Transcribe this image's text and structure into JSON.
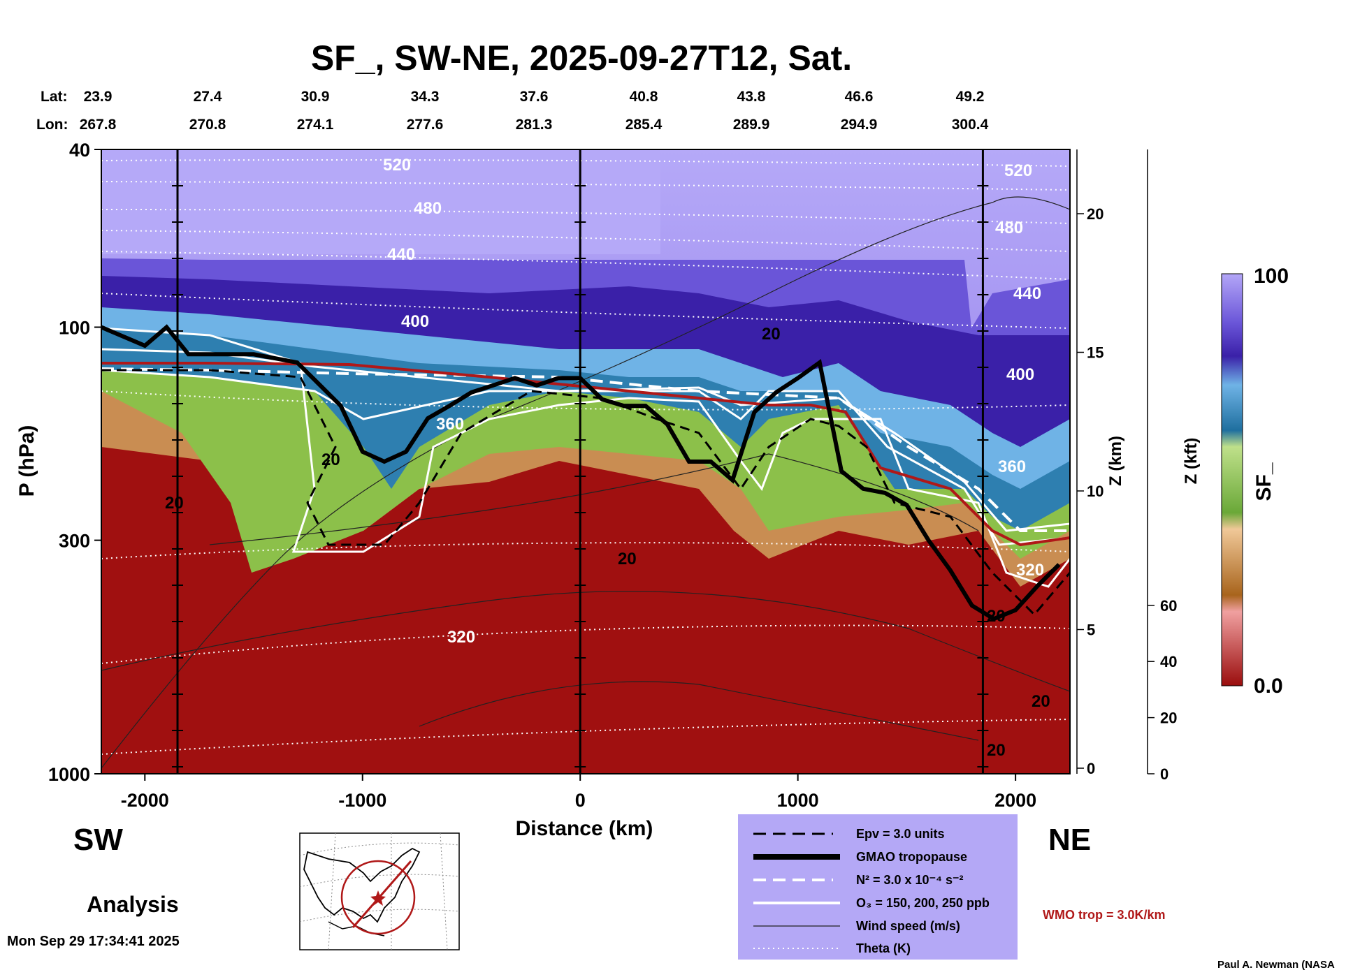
{
  "chart_data": {
    "type": "heatmap",
    "title": "SF_, SW-NE, 2025-09-27T12, Sat.",
    "xlabel": "Distance (km)",
    "ylabel": "P (hPa)",
    "y2label": "Z (km)",
    "y3label": "Z (kft)",
    "colorbar_label": "SF_",
    "xlim": [
      -2200,
      2250
    ],
    "ylim": [
      1000,
      40
    ],
    "y_scale": "log",
    "x_ticks": [
      -2000,
      -1000,
      0,
      1000,
      2000
    ],
    "x_tick_labels": [
      "-2000",
      "-1000",
      "0",
      "1000",
      "2000"
    ],
    "y_ticks": [
      40,
      100,
      300,
      1000
    ],
    "y_tick_labels": [
      "40",
      "100",
      "300",
      "1000"
    ],
    "z_km_ticks": [
      0,
      5,
      10,
      15,
      20
    ],
    "z_km_tick_labels": [
      "0",
      "5",
      "10",
      "15",
      "20"
    ],
    "z_kft_ticks": [
      0,
      20,
      40,
      60
    ],
    "z_kft_tick_labels": [
      "0",
      "20",
      "40",
      "60"
    ],
    "colorbar_range": [
      0.0,
      100
    ],
    "colorbar_labels": [
      "100",
      "0.0"
    ],
    "lat_label": "Lat:",
    "lon_label": "Lon:",
    "lat_values": [
      "23.9",
      "27.4",
      "30.9",
      "34.3",
      "37.6",
      "40.8",
      "43.8",
      "46.6",
      "49.2"
    ],
    "lon_values": [
      "267.8",
      "270.8",
      "274.1",
      "277.6",
      "281.3",
      "285.4",
      "289.9",
      "294.9",
      "300.4"
    ],
    "vertical_markers_km": [
      -1850,
      0,
      1850
    ],
    "theta_contour_labels": [
      "520",
      "480",
      "440",
      "400",
      "360",
      "320",
      "520",
      "480",
      "440",
      "400",
      "360",
      "320"
    ],
    "wind_contour_labels": [
      "20",
      "20",
      "20",
      "20",
      "20",
      "20",
      "20"
    ],
    "tropopause_pressure_hpa": {
      "x": [
        -2200,
        -2000,
        -1900,
        -1800,
        -1700,
        -1500,
        -1300,
        -1100,
        -1000,
        -900,
        -800,
        -700,
        -600,
        -500,
        -400,
        -300,
        -200,
        -100,
        0,
        100,
        200,
        300,
        400,
        500,
        600,
        700,
        800,
        900,
        1000,
        1100,
        1200,
        1300,
        1400,
        1500,
        1600,
        1700,
        1800,
        1900,
        2000,
        2100,
        2200
      ],
      "p": [
        100,
        110,
        100,
        115,
        115,
        115,
        120,
        150,
        190,
        200,
        190,
        160,
        150,
        140,
        135,
        130,
        135,
        130,
        130,
        145,
        150,
        150,
        165,
        200,
        200,
        220,
        155,
        140,
        130,
        120,
        210,
        230,
        235,
        250,
        300,
        350,
        420,
        450,
        430,
        380,
        340
      ]
    }
  },
  "labels": {
    "sw": "SW",
    "ne": "NE",
    "analysis": "Analysis",
    "timestamp": "Mon Sep 29 17:34:41 2025",
    "credit": "Paul A. Newman (NASA",
    "wmo": "WMO trop = 3.0K/km"
  },
  "legend": {
    "epv": "Epv = 3.0 units",
    "gmao": "GMAO tropopause",
    "n2": "N² = 3.0 x 10⁻⁴ s⁻²",
    "o3": "O₃ = 150, 200, 250 ppb",
    "wind": "Wind speed (m/s)",
    "theta": "Theta (K)"
  },
  "colors": {
    "stratosphere_top": "#b3a6f7",
    "stratosphere_band": "#3a20a8",
    "transition_blue": "#2e7fb0",
    "green": "#8cc04a",
    "tan": "#c68a4a",
    "troposphere": "#a01010",
    "legend_bg": "#b4a8f6",
    "wmo": "#b01818"
  }
}
